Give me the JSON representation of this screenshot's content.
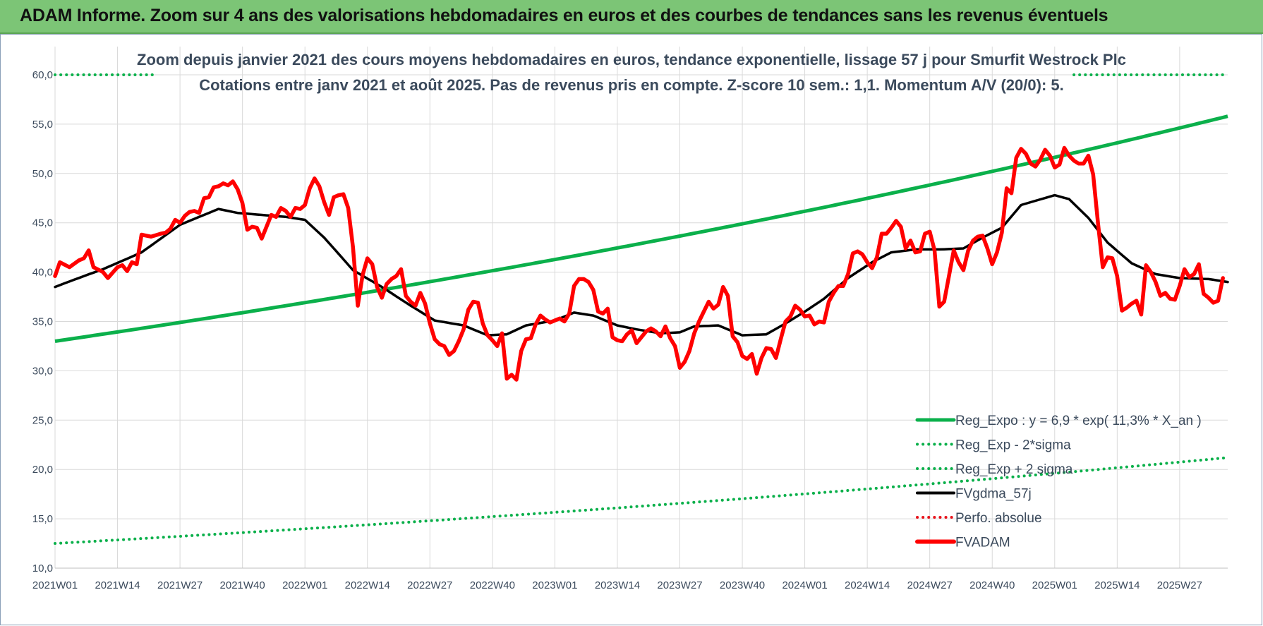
{
  "header": {
    "title": "ADAM Informe. Zoom sur 4 ans des valorisations hebdomadaires en euros et des courbes de tendances sans les revenus éventuels"
  },
  "chart_data": {
    "type": "line",
    "title_line1": "Zoom depuis janvier 2021 des cours moyens hebdomadaires en euros, tendance exponentielle, lissage 57 j pour Smurfit Westrock Plc",
    "title_line2": "Cotations entre janv 2021 et août 2025. Pas de revenus pris en compte. Z-score 10 sem.: 1,1. Momentum A/V (20/0): 5.",
    "ylim": [
      10,
      60
    ],
    "y_ticks": [
      "10,0",
      "15,0",
      "20,0",
      "25,0",
      "30,0",
      "35,0",
      "40,0",
      "45,0",
      "50,0",
      "55,0",
      "60,0"
    ],
    "y_tick_values": [
      10,
      15,
      20,
      25,
      30,
      35,
      40,
      45,
      50,
      55,
      60
    ],
    "x_ticks": [
      "2021W01",
      "2021W14",
      "2021W27",
      "2021W40",
      "2022W01",
      "2022W14",
      "2022W27",
      "2022W40",
      "2023W01",
      "2023W14",
      "2023W27",
      "2023W40",
      "2024W01",
      "2024W14",
      "2024W27",
      "2024W40",
      "2025W01",
      "2025W14",
      "2025W27"
    ],
    "x_tick_weeks": [
      0,
      13,
      26,
      39,
      52,
      65,
      78,
      91,
      104,
      117,
      130,
      143,
      156,
      169,
      182,
      195,
      208,
      221,
      234
    ],
    "n_weeks": 244,
    "grid": true,
    "legend_position": "bottom-right",
    "series": [
      {
        "name": "Reg_Expo : y = 6,9 * exp( 11,3% *  X_an )",
        "color": "#0bb04b",
        "style": "solid",
        "exp_range": [
          33.0,
          55.8
        ]
      },
      {
        "name": "Reg_Exp - 2*sigma",
        "color": "#0bb04b",
        "style": "dotted",
        "exp_range": [
          12.5,
          21.2
        ]
      },
      {
        "name": "Reg_Exp + 2 sigma",
        "color": "#0bb04b",
        "style": "dotted",
        "constant": 60.0,
        "visible_week_ranges": [
          [
            0,
            21
          ],
          [
            212,
            244
          ]
        ]
      },
      {
        "name": "FVgdma_57j",
        "color": "#000000",
        "style": "solid",
        "keypoints": [
          [
            0,
            38.5
          ],
          [
            6,
            39.6
          ],
          [
            10,
            40.3
          ],
          [
            18,
            42.0
          ],
          [
            26,
            44.8
          ],
          [
            34,
            46.4
          ],
          [
            38,
            46.0
          ],
          [
            48,
            45.6
          ],
          [
            52,
            45.3
          ],
          [
            56,
            43.5
          ],
          [
            62,
            40.2
          ],
          [
            68,
            38.5
          ],
          [
            74,
            36.6
          ],
          [
            79,
            35.1
          ],
          [
            85,
            34.6
          ],
          [
            90,
            33.6
          ],
          [
            94,
            33.7
          ],
          [
            98,
            34.6
          ],
          [
            104,
            35.1
          ],
          [
            108,
            35.9
          ],
          [
            112,
            35.6
          ],
          [
            117,
            34.6
          ],
          [
            121,
            34.2
          ],
          [
            126,
            33.8
          ],
          [
            130,
            33.9
          ],
          [
            133,
            34.5
          ],
          [
            138,
            34.6
          ],
          [
            141,
            34.0
          ],
          [
            143,
            33.6
          ],
          [
            148,
            33.7
          ],
          [
            152,
            34.8
          ],
          [
            156,
            36.0
          ],
          [
            160,
            37.3
          ],
          [
            165,
            39.4
          ],
          [
            170,
            41.0
          ],
          [
            174,
            42.0
          ],
          [
            179,
            42.3
          ],
          [
            184,
            42.3
          ],
          [
            189,
            42.4
          ],
          [
            193,
            43.5
          ],
          [
            197,
            44.5
          ],
          [
            201,
            46.8
          ],
          [
            208,
            47.8
          ],
          [
            211,
            47.4
          ],
          [
            215,
            45.5
          ],
          [
            219,
            43.0
          ],
          [
            224,
            40.9
          ],
          [
            229,
            39.8
          ],
          [
            234,
            39.4
          ],
          [
            240,
            39.3
          ],
          [
            244,
            39.0
          ]
        ]
      },
      {
        "name": "Perfo. absolue",
        "color": "#e8131b",
        "style": "dotted"
      },
      {
        "name": "FVADAM",
        "color": "#ff0000",
        "style": "solid-thick",
        "keypoints": [
          [
            0,
            39.6
          ],
          [
            1,
            41.0
          ],
          [
            3,
            40.5
          ],
          [
            5,
            41.2
          ],
          [
            6,
            41.4
          ],
          [
            7,
            42.2
          ],
          [
            8,
            40.5
          ],
          [
            10,
            40.0
          ],
          [
            11,
            39.4
          ],
          [
            13,
            40.5
          ],
          [
            14,
            40.7
          ],
          [
            15,
            40.1
          ],
          [
            16,
            41.0
          ],
          [
            17,
            40.8
          ],
          [
            18,
            43.8
          ],
          [
            20,
            43.6
          ],
          [
            22,
            43.9
          ],
          [
            23,
            44.0
          ],
          [
            24,
            44.4
          ],
          [
            25,
            45.3
          ],
          [
            26,
            45.0
          ],
          [
            27,
            45.7
          ],
          [
            28,
            46.1
          ],
          [
            29,
            46.2
          ],
          [
            30,
            46.0
          ],
          [
            31,
            47.5
          ],
          [
            32,
            47.6
          ],
          [
            33,
            48.6
          ],
          [
            34,
            48.7
          ],
          [
            35,
            49.0
          ],
          [
            36,
            48.8
          ],
          [
            37,
            49.2
          ],
          [
            38,
            48.4
          ],
          [
            39,
            47.0
          ],
          [
            40,
            44.3
          ],
          [
            41,
            44.6
          ],
          [
            42,
            44.5
          ],
          [
            43,
            43.4
          ],
          [
            44,
            44.6
          ],
          [
            45,
            45.8
          ],
          [
            46,
            45.6
          ],
          [
            47,
            46.5
          ],
          [
            48,
            46.2
          ],
          [
            49,
            45.6
          ],
          [
            50,
            46.5
          ],
          [
            51,
            46.4
          ],
          [
            52,
            46.8
          ],
          [
            53,
            48.5
          ],
          [
            54,
            49.5
          ],
          [
            55,
            48.7
          ],
          [
            56,
            47.1
          ],
          [
            57,
            45.8
          ],
          [
            58,
            47.6
          ],
          [
            59,
            47.8
          ],
          [
            60,
            47.9
          ],
          [
            61,
            46.5
          ],
          [
            62,
            42.5
          ],
          [
            63,
            36.6
          ],
          [
            64,
            39.7
          ],
          [
            65,
            41.4
          ],
          [
            66,
            40.8
          ],
          [
            67,
            38.5
          ],
          [
            68,
            37.4
          ],
          [
            69,
            38.8
          ],
          [
            70,
            39.3
          ],
          [
            71,
            39.6
          ],
          [
            72,
            40.3
          ],
          [
            73,
            37.6
          ],
          [
            74,
            37.0
          ],
          [
            75,
            36.6
          ],
          [
            76,
            37.9
          ],
          [
            77,
            36.8
          ],
          [
            78,
            34.8
          ],
          [
            79,
            33.2
          ],
          [
            80,
            32.7
          ],
          [
            81,
            32.5
          ],
          [
            82,
            31.6
          ],
          [
            83,
            32.0
          ],
          [
            84,
            33.0
          ],
          [
            85,
            34.2
          ],
          [
            86,
            36.2
          ],
          [
            87,
            37.0
          ],
          [
            88,
            36.9
          ],
          [
            89,
            34.8
          ],
          [
            90,
            33.6
          ],
          [
            91,
            33.1
          ],
          [
            92,
            32.5
          ],
          [
            93,
            33.8
          ],
          [
            94,
            29.2
          ],
          [
            95,
            29.6
          ],
          [
            96,
            29.1
          ],
          [
            97,
            32.0
          ],
          [
            98,
            33.2
          ],
          [
            99,
            33.3
          ],
          [
            100,
            34.7
          ],
          [
            101,
            35.6
          ],
          [
            102,
            35.2
          ],
          [
            103,
            34.9
          ],
          [
            104,
            35.1
          ],
          [
            105,
            35.3
          ],
          [
            106,
            35.0
          ],
          [
            107,
            35.8
          ],
          [
            108,
            38.6
          ],
          [
            109,
            39.3
          ],
          [
            110,
            39.3
          ],
          [
            111,
            39.0
          ],
          [
            112,
            38.2
          ],
          [
            113,
            36.0
          ],
          [
            114,
            35.8
          ],
          [
            115,
            36.3
          ],
          [
            116,
            33.4
          ],
          [
            117,
            33.1
          ],
          [
            118,
            33.0
          ],
          [
            119,
            33.7
          ],
          [
            120,
            34.1
          ],
          [
            121,
            32.8
          ],
          [
            122,
            33.4
          ],
          [
            123,
            34.0
          ],
          [
            124,
            34.3
          ],
          [
            125,
            34.0
          ],
          [
            126,
            33.5
          ],
          [
            127,
            34.5
          ],
          [
            128,
            33.3
          ],
          [
            129,
            32.5
          ],
          [
            130,
            30.3
          ],
          [
            131,
            30.9
          ],
          [
            132,
            32.0
          ],
          [
            133,
            33.8
          ],
          [
            134,
            35.0
          ],
          [
            135,
            36.0
          ],
          [
            136,
            37.0
          ],
          [
            137,
            36.3
          ],
          [
            138,
            36.7
          ],
          [
            139,
            38.5
          ],
          [
            140,
            37.6
          ],
          [
            141,
            33.5
          ],
          [
            142,
            32.9
          ],
          [
            143,
            31.5
          ],
          [
            144,
            31.2
          ],
          [
            145,
            31.7
          ],
          [
            146,
            29.7
          ],
          [
            147,
            31.3
          ],
          [
            148,
            32.3
          ],
          [
            149,
            32.2
          ],
          [
            150,
            31.3
          ],
          [
            151,
            33.2
          ],
          [
            152,
            35.0
          ],
          [
            153,
            35.5
          ],
          [
            154,
            36.6
          ],
          [
            155,
            36.2
          ],
          [
            156,
            35.5
          ],
          [
            157,
            35.6
          ],
          [
            158,
            34.7
          ],
          [
            159,
            35.0
          ],
          [
            160,
            34.9
          ],
          [
            161,
            37.0
          ],
          [
            162,
            37.9
          ],
          [
            163,
            38.6
          ],
          [
            164,
            38.6
          ],
          [
            165,
            39.8
          ],
          [
            166,
            41.9
          ],
          [
            167,
            42.1
          ],
          [
            168,
            41.8
          ],
          [
            169,
            41.0
          ],
          [
            170,
            40.4
          ],
          [
            171,
            41.5
          ],
          [
            172,
            43.9
          ],
          [
            173,
            43.9
          ],
          [
            174,
            44.5
          ],
          [
            175,
            45.2
          ],
          [
            176,
            44.6
          ],
          [
            177,
            42.4
          ],
          [
            178,
            43.2
          ],
          [
            179,
            42.0
          ],
          [
            180,
            42.1
          ],
          [
            181,
            43.9
          ],
          [
            182,
            44.1
          ],
          [
            183,
            42.2
          ],
          [
            184,
            36.5
          ],
          [
            185,
            37.0
          ],
          [
            186,
            39.6
          ],
          [
            187,
            42.2
          ],
          [
            188,
            41.0
          ],
          [
            189,
            40.2
          ],
          [
            190,
            42.2
          ],
          [
            191,
            43.2
          ],
          [
            192,
            43.6
          ],
          [
            193,
            43.7
          ],
          [
            194,
            42.4
          ],
          [
            195,
            40.8
          ],
          [
            196,
            42.0
          ],
          [
            197,
            44.0
          ],
          [
            198,
            48.5
          ],
          [
            199,
            48.0
          ],
          [
            200,
            51.6
          ],
          [
            201,
            52.5
          ],
          [
            202,
            52.0
          ],
          [
            203,
            51.0
          ],
          [
            204,
            50.7
          ],
          [
            205,
            51.4
          ],
          [
            206,
            52.4
          ],
          [
            207,
            51.8
          ],
          [
            208,
            50.6
          ],
          [
            209,
            50.9
          ],
          [
            210,
            52.6
          ],
          [
            211,
            51.8
          ],
          [
            212,
            51.3
          ],
          [
            213,
            51.0
          ],
          [
            214,
            51.0
          ],
          [
            215,
            51.8
          ],
          [
            216,
            49.9
          ],
          [
            217,
            45.0
          ],
          [
            218,
            40.5
          ],
          [
            219,
            41.5
          ],
          [
            220,
            41.4
          ],
          [
            221,
            39.6
          ],
          [
            222,
            36.1
          ],
          [
            223,
            36.4
          ],
          [
            224,
            36.8
          ],
          [
            225,
            37.1
          ],
          [
            226,
            35.7
          ],
          [
            227,
            40.7
          ],
          [
            228,
            40.0
          ],
          [
            229,
            39.0
          ],
          [
            230,
            37.6
          ],
          [
            231,
            37.9
          ],
          [
            232,
            37.3
          ],
          [
            233,
            37.2
          ],
          [
            234,
            38.6
          ],
          [
            235,
            40.3
          ],
          [
            236,
            39.5
          ],
          [
            237,
            39.8
          ],
          [
            238,
            40.8
          ],
          [
            239,
            37.8
          ],
          [
            240,
            37.4
          ],
          [
            241,
            36.9
          ],
          [
            242,
            37.1
          ],
          [
            243,
            39.4
          ]
        ]
      }
    ]
  }
}
